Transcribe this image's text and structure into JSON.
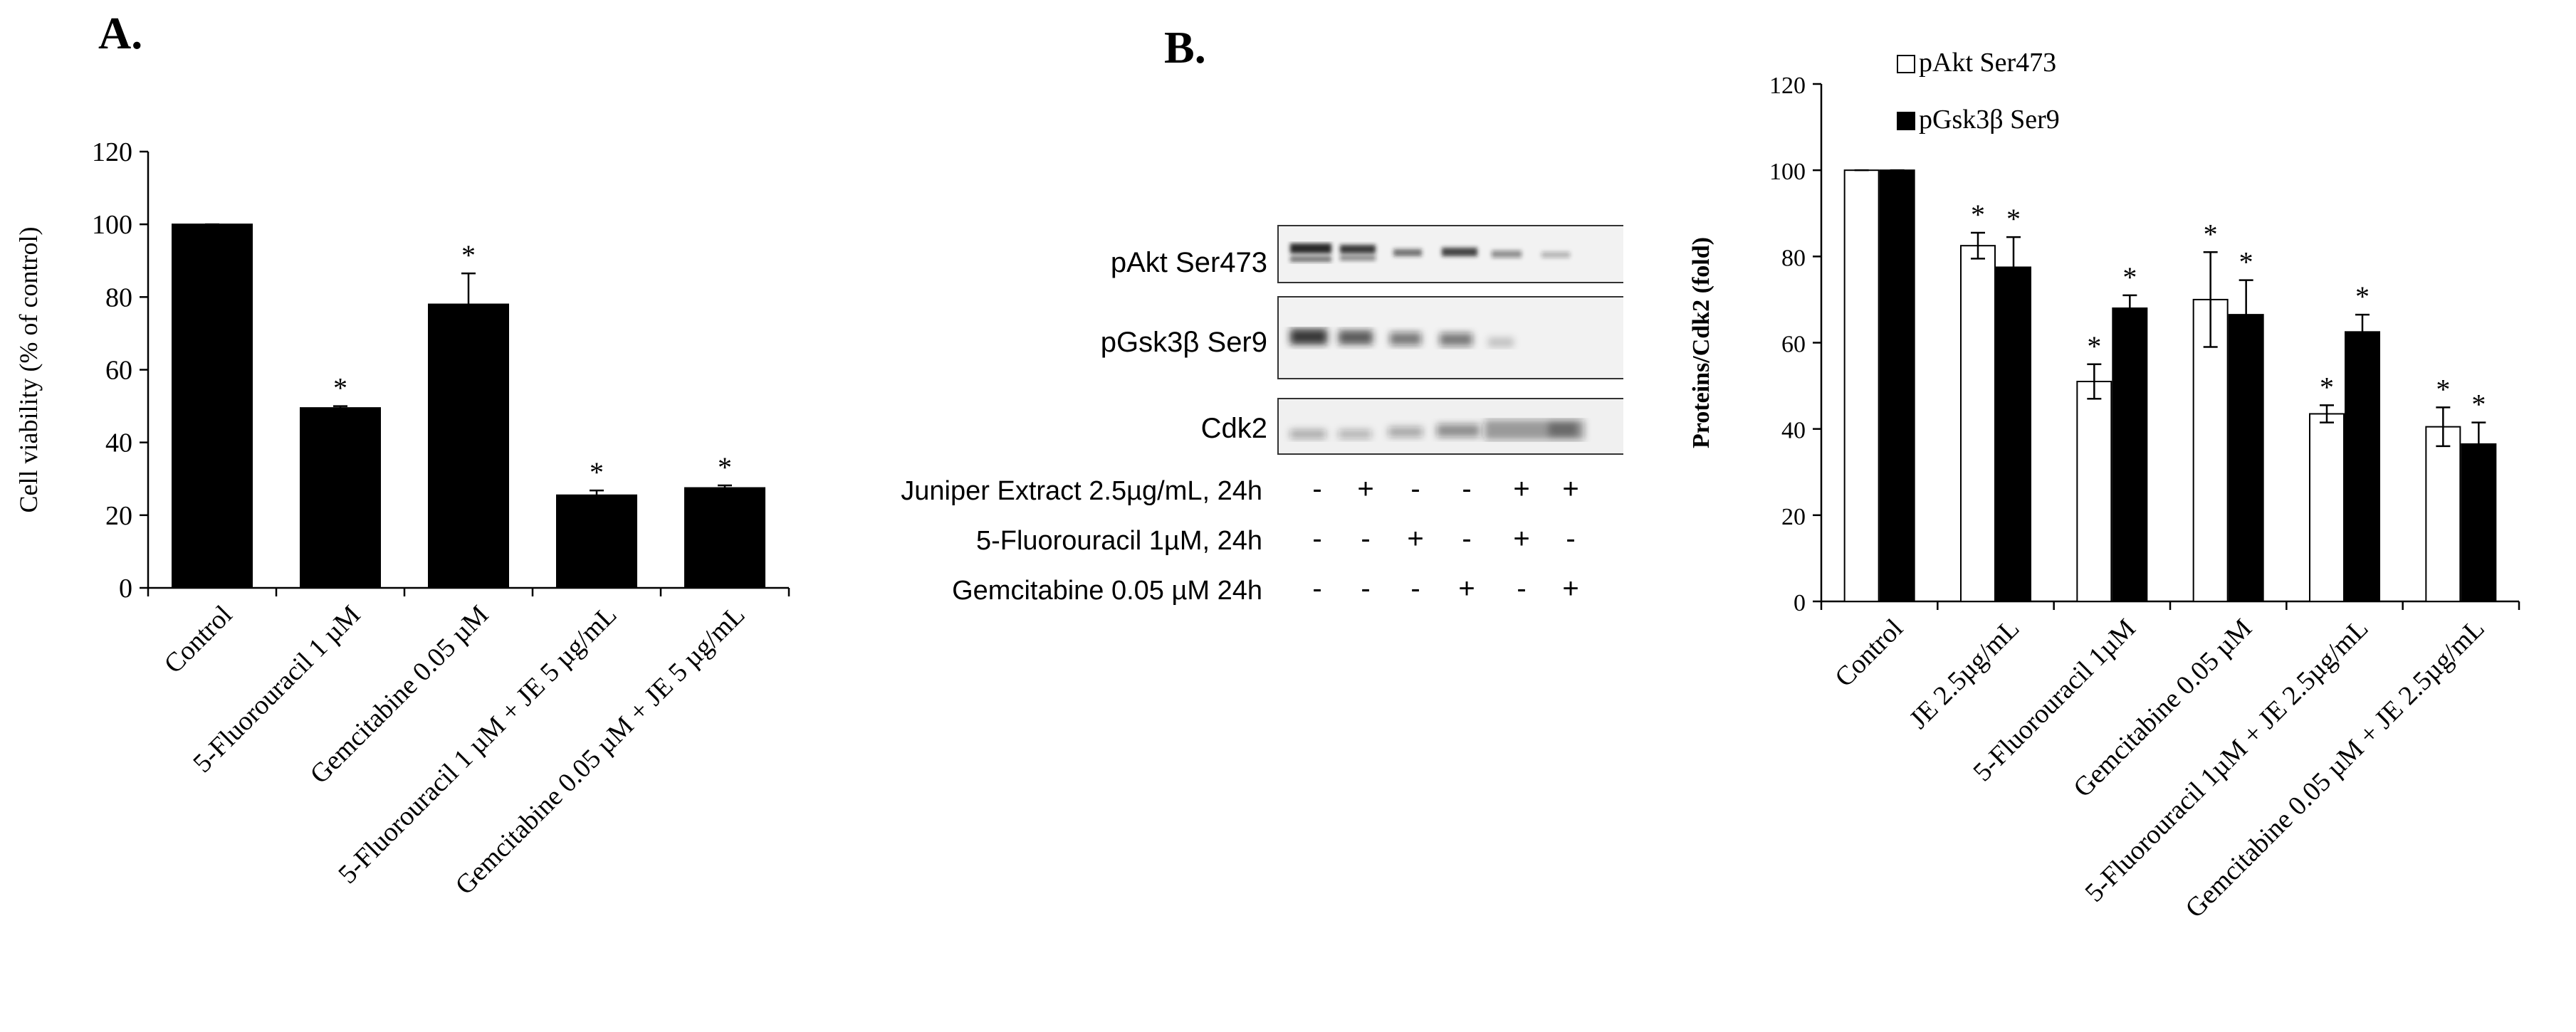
{
  "panels": {
    "a_letter": "A.",
    "b_letter": "B."
  },
  "chart_data": [
    {
      "id": "A",
      "type": "bar",
      "ylabel": "Cell viability (% of control)",
      "ylim": [
        0,
        120
      ],
      "yticks": [
        0,
        20,
        40,
        60,
        80,
        100,
        120
      ],
      "categories": [
        "Control",
        "5-Fluorouracil 1 µM",
        "Gemcitabine 0.05 µM",
        "5-Fluorouracil 1 µM + JE 5 µg/mL",
        "Gemcitabine 0.05 µM + JE 5 µg/mL"
      ],
      "series": [
        {
          "values": [
            100,
            49.5,
            78,
            25.5,
            27.5
          ],
          "errors": [
            0,
            0.5,
            8.5,
            1.3,
            0.7
          ],
          "sig": [
            "",
            "*",
            "*",
            "*",
            "*"
          ],
          "color": "#000000"
        }
      ]
    },
    {
      "id": "B",
      "type": "bar",
      "ylabel": "Proteins/Cdk2 (fold)",
      "ylim": [
        0,
        120
      ],
      "yticks": [
        0,
        20,
        40,
        60,
        80,
        100,
        120
      ],
      "legend_position": "top-left",
      "categories": [
        "Control",
        "JE 2.5µg/mL",
        "5-Fluorouracil 1µM",
        "Gemcitabine 0.05 µM",
        "5-Fluorouracil 1µM + JE 2.5µg/mL",
        "Gemcitabine 0.05 µM + JE 2.5µg/mL"
      ],
      "series": [
        {
          "name": "pAkt Ser473",
          "values": [
            100,
            82.5,
            51,
            70,
            43.5,
            40.5
          ],
          "errors": [
            0,
            3,
            4,
            11,
            2,
            4.5
          ],
          "sig": [
            "",
            "*",
            "*",
            "*",
            "*",
            "*"
          ],
          "color": "#ffffff"
        },
        {
          "name": "pGsk3β Ser9",
          "values": [
            100,
            77.5,
            68,
            66.5,
            62.5,
            36.5
          ],
          "errors": [
            0,
            7,
            3,
            8,
            4,
            5
          ],
          "sig": [
            "",
            "*",
            "*",
            "*",
            "*",
            "*"
          ],
          "color": "#000000"
        }
      ]
    }
  ],
  "blot": {
    "rows": [
      "pAkt Ser473",
      "pGsk3β Ser9",
      "Cdk2"
    ],
    "treatments": [
      {
        "label": "Juniper Extract 2.5µg/mL, 24h",
        "signs": [
          "-",
          "+",
          "-",
          "-",
          "+",
          "+"
        ]
      },
      {
        "label": "5-Fluorouracil 1µM, 24h",
        "signs": [
          "-",
          "-",
          "+",
          "-",
          "+",
          "-"
        ]
      },
      {
        "label": "Gemcitabine 0.05 µM 24h",
        "signs": [
          "-",
          "-",
          "-",
          "+",
          "-",
          "+"
        ]
      }
    ]
  }
}
